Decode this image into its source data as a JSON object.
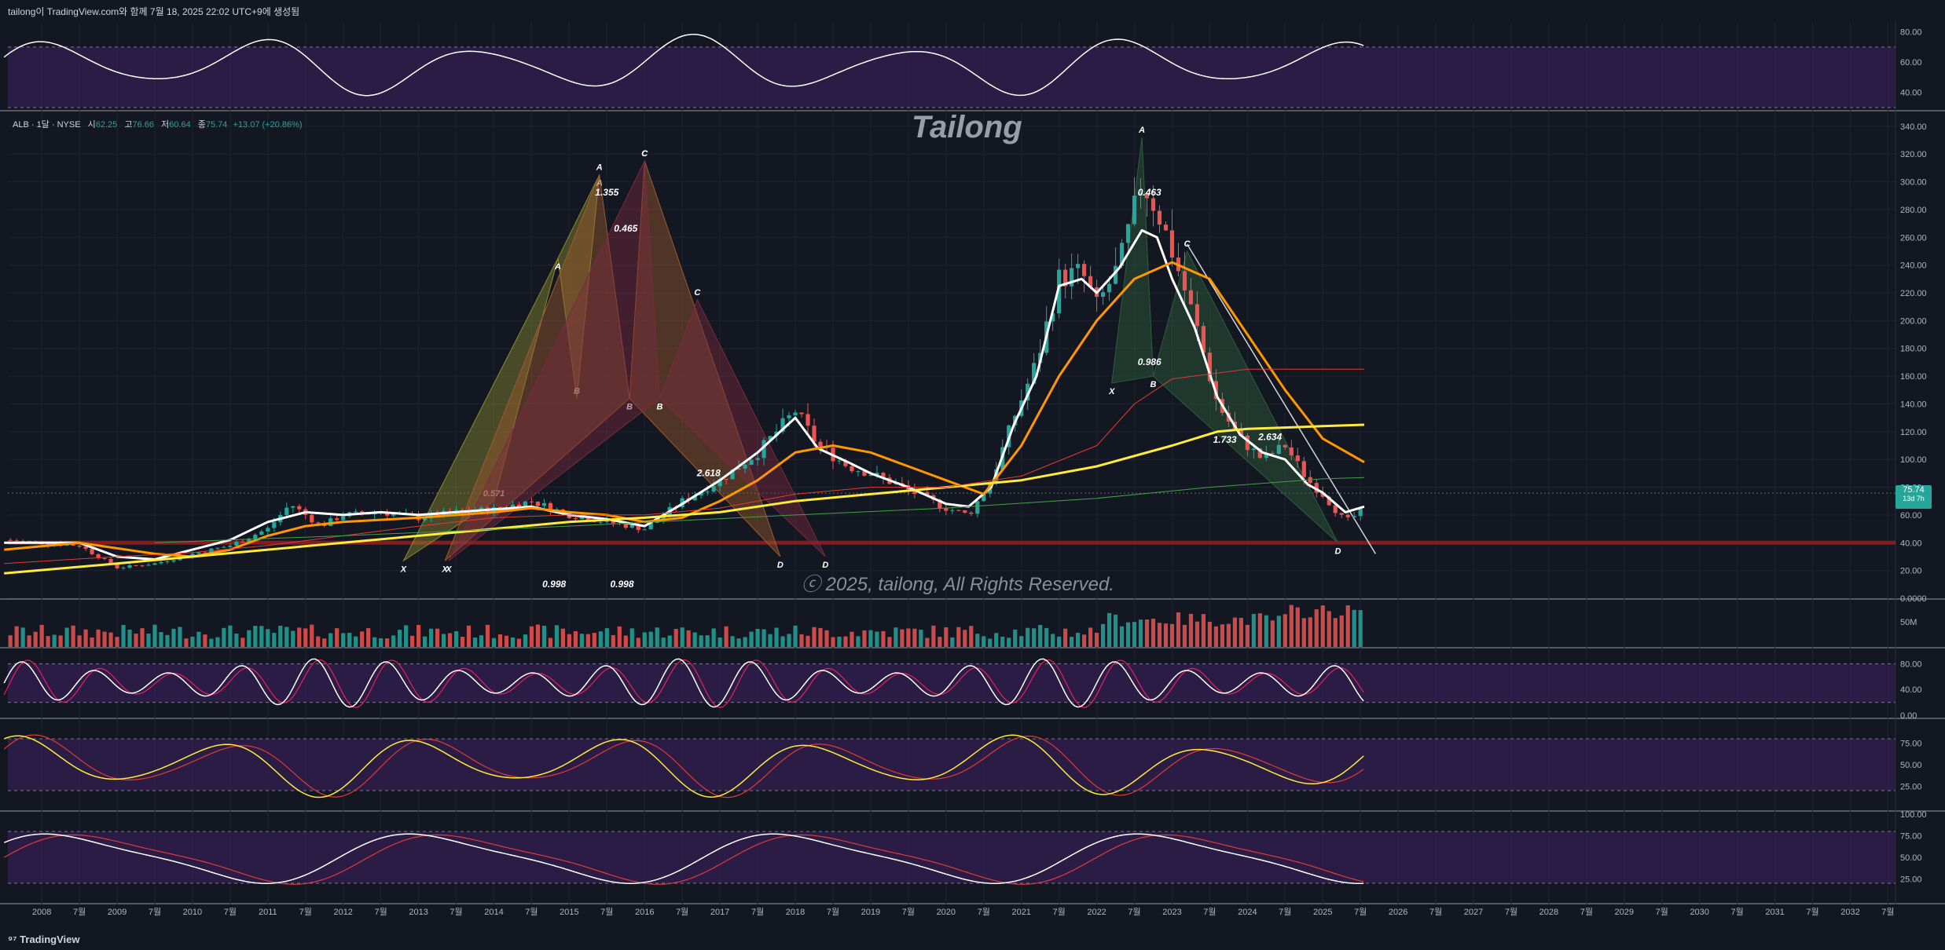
{
  "header": {
    "text": "tailong이 TradingView.com와 함께 7월 18, 2025 22:02 UTC+9에 생성됨"
  },
  "footer": {
    "brand": "TradingView"
  },
  "legend": {
    "symbol": "ALB · 1달 · NYSE",
    "open_label": "시",
    "open": "62.25",
    "high_label": "고",
    "high": "76.66",
    "low_label": "저",
    "low": "60.64",
    "close_label": "종",
    "close": "75.74",
    "change": "+13.07 (+20.86%)"
  },
  "watermark": "Tailong",
  "copyright": "ⓒ 2025, tailong, All Rights Reserved.",
  "last_price": {
    "value": "75.74",
    "countdown": "13d 7h"
  },
  "colors": {
    "up": "#26a69a",
    "down": "#ef5350",
    "ma_white": "#ffffff",
    "ma_orange": "#ff9800",
    "ma_yellow": "#ffeb3b",
    "ma_red": "#e53935",
    "ma_green": "#43a047",
    "pane_fill": "#3b1f5e",
    "background": "#131722"
  },
  "chart_data": {
    "type": "candlestick",
    "x_axis_labels": [
      "2008",
      "7월",
      "2009",
      "7월",
      "2010",
      "7월",
      "2011",
      "7월",
      "2012",
      "7월",
      "2013",
      "7월",
      "2014",
      "7월",
      "2015",
      "7월",
      "2016",
      "7월",
      "2017",
      "7월",
      "2018",
      "7월",
      "2019",
      "7월",
      "2020",
      "7월",
      "2021",
      "7월",
      "2022",
      "7월",
      "2023",
      "7월",
      "2024",
      "7월",
      "2025",
      "7월",
      "2026",
      "7월",
      "2027",
      "7월",
      "2028",
      "7월",
      "2029",
      "7월",
      "2030",
      "7월",
      "2031",
      "7월",
      "2032",
      "7월"
    ],
    "price_axis_ticks": [
      "340.00",
      "320.00",
      "300.00",
      "280.00",
      "260.00",
      "240.00",
      "220.00",
      "200.00",
      "180.00",
      "160.00",
      "140.00",
      "120.00",
      "100.00",
      "80.00",
      "60.00",
      "40.00",
      "20.00",
      "0.0000"
    ],
    "price_range": [
      0,
      345
    ],
    "price_anchors": [
      [
        2007.5,
        42
      ],
      [
        2008.5,
        38
      ],
      [
        2009.0,
        22
      ],
      [
        2009.5,
        25
      ],
      [
        2010.0,
        32
      ],
      [
        2010.5,
        38
      ],
      [
        2011.0,
        50
      ],
      [
        2011.3,
        68
      ],
      [
        2011.7,
        52
      ],
      [
        2012.0,
        60
      ],
      [
        2012.5,
        62
      ],
      [
        2013.0,
        58
      ],
      [
        2013.5,
        62
      ],
      [
        2014.0,
        64
      ],
      [
        2014.5,
        70
      ],
      [
        2015.0,
        60
      ],
      [
        2015.5,
        55
      ],
      [
        2016.0,
        50
      ],
      [
        2016.5,
        70
      ],
      [
        2017.0,
        85
      ],
      [
        2017.5,
        105
      ],
      [
        2018.0,
        135
      ],
      [
        2018.3,
        110
      ],
      [
        2018.7,
        95
      ],
      [
        2019.0,
        90
      ],
      [
        2019.5,
        78
      ],
      [
        2020.0,
        65
      ],
      [
        2020.3,
        60
      ],
      [
        2020.6,
        85
      ],
      [
        2020.9,
        130
      ],
      [
        2021.2,
        170
      ],
      [
        2021.5,
        230
      ],
      [
        2021.8,
        235
      ],
      [
        2022.0,
        210
      ],
      [
        2022.3,
        240
      ],
      [
        2022.6,
        300
      ],
      [
        2022.8,
        280
      ],
      [
        2023.0,
        250
      ],
      [
        2023.3,
        200
      ],
      [
        2023.6,
        140
      ],
      [
        2023.9,
        115
      ],
      [
        2024.2,
        100
      ],
      [
        2024.5,
        110
      ],
      [
        2024.8,
        85
      ],
      [
        2025.0,
        75
      ],
      [
        2025.3,
        55
      ],
      [
        2025.5,
        62
      ],
      [
        2025.55,
        75.74
      ]
    ],
    "ma_series": [
      {
        "color": "#ffffff",
        "points": [
          [
            2007.5,
            40
          ],
          [
            2008.5,
            40
          ],
          [
            2009.0,
            30
          ],
          [
            2009.5,
            28
          ],
          [
            2010.0,
            35
          ],
          [
            2010.5,
            42
          ],
          [
            2011.0,
            55
          ],
          [
            2011.5,
            62
          ],
          [
            2012.0,
            60
          ],
          [
            2012.5,
            62
          ],
          [
            2013.0,
            60
          ],
          [
            2013.5,
            62
          ],
          [
            2014.0,
            64
          ],
          [
            2014.5,
            66
          ],
          [
            2015.0,
            60
          ],
          [
            2015.5,
            57
          ],
          [
            2016.0,
            52
          ],
          [
            2016.5,
            68
          ],
          [
            2017.0,
            85
          ],
          [
            2017.5,
            105
          ],
          [
            2018.0,
            130
          ],
          [
            2018.3,
            108
          ],
          [
            2018.7,
            98
          ],
          [
            2019.0,
            90
          ],
          [
            2019.5,
            80
          ],
          [
            2020.0,
            68
          ],
          [
            2020.3,
            66
          ],
          [
            2020.6,
            80
          ],
          [
            2020.9,
            125
          ],
          [
            2021.2,
            160
          ],
          [
            2021.5,
            225
          ],
          [
            2021.8,
            230
          ],
          [
            2022.0,
            220
          ],
          [
            2022.3,
            238
          ],
          [
            2022.6,
            265
          ],
          [
            2022.8,
            260
          ],
          [
            2023.0,
            230
          ],
          [
            2023.3,
            195
          ],
          [
            2023.6,
            145
          ],
          [
            2023.9,
            118
          ],
          [
            2024.2,
            105
          ],
          [
            2024.5,
            100
          ],
          [
            2024.8,
            82
          ],
          [
            2025.0,
            76
          ],
          [
            2025.3,
            62
          ],
          [
            2025.55,
            66
          ]
        ]
      },
      {
        "color": "#ff9800",
        "points": [
          [
            2007.5,
            35
          ],
          [
            2008.5,
            40
          ],
          [
            2009.5,
            32
          ],
          [
            2010.0,
            30
          ],
          [
            2010.5,
            35
          ],
          [
            2011.0,
            45
          ],
          [
            2011.5,
            52
          ],
          [
            2012.0,
            55
          ],
          [
            2013.0,
            58
          ],
          [
            2014.0,
            62
          ],
          [
            2014.5,
            65
          ],
          [
            2015.0,
            62
          ],
          [
            2015.5,
            60
          ],
          [
            2016.0,
            55
          ],
          [
            2016.5,
            58
          ],
          [
            2017.0,
            70
          ],
          [
            2017.5,
            85
          ],
          [
            2018.0,
            105
          ],
          [
            2018.5,
            110
          ],
          [
            2019.0,
            105
          ],
          [
            2019.5,
            95
          ],
          [
            2020.0,
            85
          ],
          [
            2020.5,
            75
          ],
          [
            2021.0,
            110
          ],
          [
            2021.5,
            160
          ],
          [
            2022.0,
            200
          ],
          [
            2022.5,
            230
          ],
          [
            2023.0,
            242
          ],
          [
            2023.5,
            230
          ],
          [
            2024.0,
            190
          ],
          [
            2024.5,
            150
          ],
          [
            2025.0,
            115
          ],
          [
            2025.55,
            98
          ]
        ]
      },
      {
        "color": "#ffeb3b",
        "points": [
          [
            2007.5,
            18
          ],
          [
            2009.0,
            25
          ],
          [
            2010.0,
            30
          ],
          [
            2011.0,
            35
          ],
          [
            2012.0,
            40
          ],
          [
            2013.0,
            45
          ],
          [
            2014.0,
            50
          ],
          [
            2015.0,
            55
          ],
          [
            2016.0,
            58
          ],
          [
            2017.0,
            62
          ],
          [
            2018.0,
            70
          ],
          [
            2019.0,
            75
          ],
          [
            2020.0,
            80
          ],
          [
            2021.0,
            85
          ],
          [
            2022.0,
            95
          ],
          [
            2023.0,
            110
          ],
          [
            2023.6,
            120
          ],
          [
            2024.0,
            122
          ],
          [
            2025.0,
            124
          ],
          [
            2025.55,
            125
          ]
        ]
      },
      {
        "color": "#e53935",
        "points": [
          [
            2007.5,
            25
          ],
          [
            2009.0,
            30
          ],
          [
            2010.0,
            33
          ],
          [
            2011.0,
            38
          ],
          [
            2012.0,
            45
          ],
          [
            2013.0,
            52
          ],
          [
            2014.0,
            58
          ],
          [
            2015.0,
            60
          ],
          [
            2016.0,
            60
          ],
          [
            2017.0,
            65
          ],
          [
            2018.0,
            75
          ],
          [
            2019.0,
            80
          ],
          [
            2020.0,
            80
          ],
          [
            2021.0,
            88
          ],
          [
            2022.0,
            110
          ],
          [
            2022.5,
            140
          ],
          [
            2023.0,
            158
          ],
          [
            2024.0,
            165
          ],
          [
            2025.55,
            165
          ]
        ]
      },
      {
        "color": "#43a047",
        "points": [
          [
            2009.5,
            40
          ],
          [
            2012.0,
            45
          ],
          [
            2015.0,
            52
          ],
          [
            2018.0,
            60
          ],
          [
            2020.0,
            65
          ],
          [
            2022.0,
            72
          ],
          [
            2023.5,
            80
          ],
          [
            2025.0,
            86
          ],
          [
            2025.55,
            87
          ]
        ]
      }
    ],
    "harmonic_patterns": [
      {
        "color": "#8b8a2e",
        "points": [
          [
            2012.8,
            27
          ],
          [
            2014.0,
            70
          ],
          [
            2014.85,
            245
          ],
          [
            2015.1,
            144
          ],
          [
            2015.4,
            305
          ]
        ],
        "labels": [
          "X",
          "0.571",
          "A",
          "B",
          "A"
        ]
      },
      {
        "color": "#9c5a2f",
        "points": [
          [
            2013.35,
            27
          ],
          [
            2015.4,
            305
          ],
          [
            2015.8,
            144
          ],
          [
            2016.0,
            315
          ],
          [
            2017.8,
            30
          ]
        ],
        "labels": [
          "X",
          "A",
          "B",
          "C",
          "D"
        ]
      },
      {
        "color": "#7a2a3e",
        "points": [
          [
            2013.4,
            27
          ],
          [
            2016.0,
            315
          ],
          [
            2016.2,
            144
          ],
          [
            2016.7,
            215
          ],
          [
            2018.4,
            30
          ]
        ],
        "labels": [
          "X",
          "C",
          "B",
          "C",
          "D"
        ]
      },
      {
        "color": "#2e5f3a",
        "points": [
          [
            2022.2,
            155
          ],
          [
            2022.6,
            332
          ],
          [
            2022.75,
            160
          ],
          [
            2023.2,
            250
          ],
          [
            2025.2,
            40
          ]
        ],
        "labels": [
          "X",
          "A",
          "B",
          "C",
          "D"
        ]
      }
    ],
    "pattern_annotations": [
      {
        "text": "1.355",
        "x": 2015.5,
        "y": 290
      },
      {
        "text": "0.465",
        "x": 2015.75,
        "y": 264
      },
      {
        "text": "0.998",
        "x": 2014.8,
        "y": 8
      },
      {
        "text": "0.998",
        "x": 2015.7,
        "y": 8
      },
      {
        "text": "2.618",
        "x": 2016.85,
        "y": 88
      },
      {
        "text": "0.463",
        "x": 2022.7,
        "y": 290
      },
      {
        "text": "0.986",
        "x": 2022.7,
        "y": 168
      },
      {
        "text": "1.733",
        "x": 2023.7,
        "y": 112
      },
      {
        "text": "2.634",
        "x": 2024.3,
        "y": 114
      }
    ],
    "horizontal_lines": [
      {
        "value": 40,
        "color": "#b71c1c"
      },
      {
        "value": 75.74,
        "color": "#787b86",
        "dotted": true
      }
    ],
    "trendline": {
      "points": [
        [
          2023.2,
          255
        ],
        [
          2025.7,
          32
        ]
      ]
    },
    "rsi_pane": {
      "ticks": [
        "80.00",
        "60.00",
        "40.00"
      ],
      "bands": [
        70,
        30
      ],
      "range": [
        30,
        85
      ]
    },
    "volume_pane": {
      "label": "50M"
    },
    "stoch_pane_1": {
      "ticks": [
        "80.00",
        "40.00",
        "0.00"
      ],
      "bands": [
        80,
        20
      ],
      "range": [
        0,
        100
      ]
    },
    "stoch_pane_2": {
      "ticks": [
        "75.00",
        "50.00",
        "25.00"
      ],
      "bands": [
        80,
        20
      ],
      "range": [
        0,
        100
      ]
    },
    "stoch_pane_3": {
      "ticks": [
        "100.00",
        "75.00",
        "50.00",
        "25.00"
      ],
      "bands": [
        80,
        20
      ],
      "range": [
        0,
        100
      ]
    }
  }
}
